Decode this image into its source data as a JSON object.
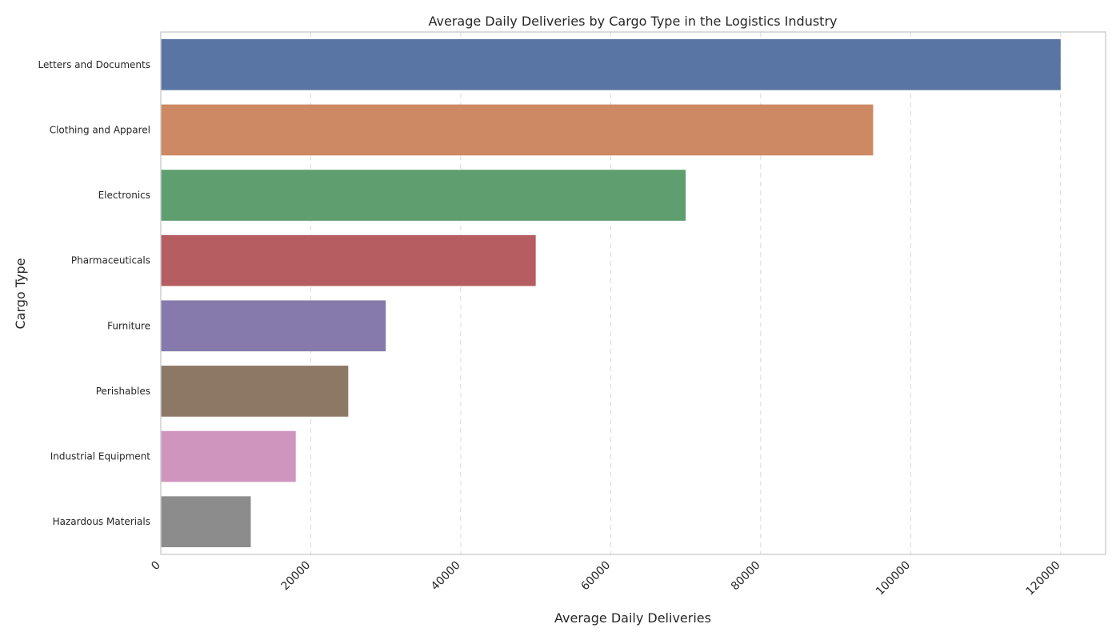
{
  "chart_data": {
    "type": "bar",
    "orientation": "horizontal",
    "title": "Average Daily Deliveries by Cargo Type in the Logistics Industry",
    "xlabel": "Average Daily Deliveries",
    "ylabel": "Cargo Type",
    "categories": [
      "Letters and Documents",
      "Clothing and Apparel",
      "Electronics",
      "Pharmaceuticals",
      "Furniture",
      "Perishables",
      "Industrial Equipment",
      "Hazardous Materials"
    ],
    "values": [
      120000,
      95000,
      70000,
      50000,
      30000,
      25000,
      18000,
      12000
    ],
    "colors": [
      "#5875a4",
      "#cc8963",
      "#5f9e6e",
      "#b55d60",
      "#857aab",
      "#8d7866",
      "#d095bf",
      "#8c8c8c"
    ],
    "xlim": [
      0,
      126000
    ],
    "xticks": [
      0,
      20000,
      40000,
      60000,
      80000,
      100000,
      120000
    ],
    "xtick_labels": [
      "0",
      "20000",
      "40000",
      "60000",
      "80000",
      "100000",
      "120000"
    ],
    "grid": "x-dashed",
    "legend": "none"
  }
}
